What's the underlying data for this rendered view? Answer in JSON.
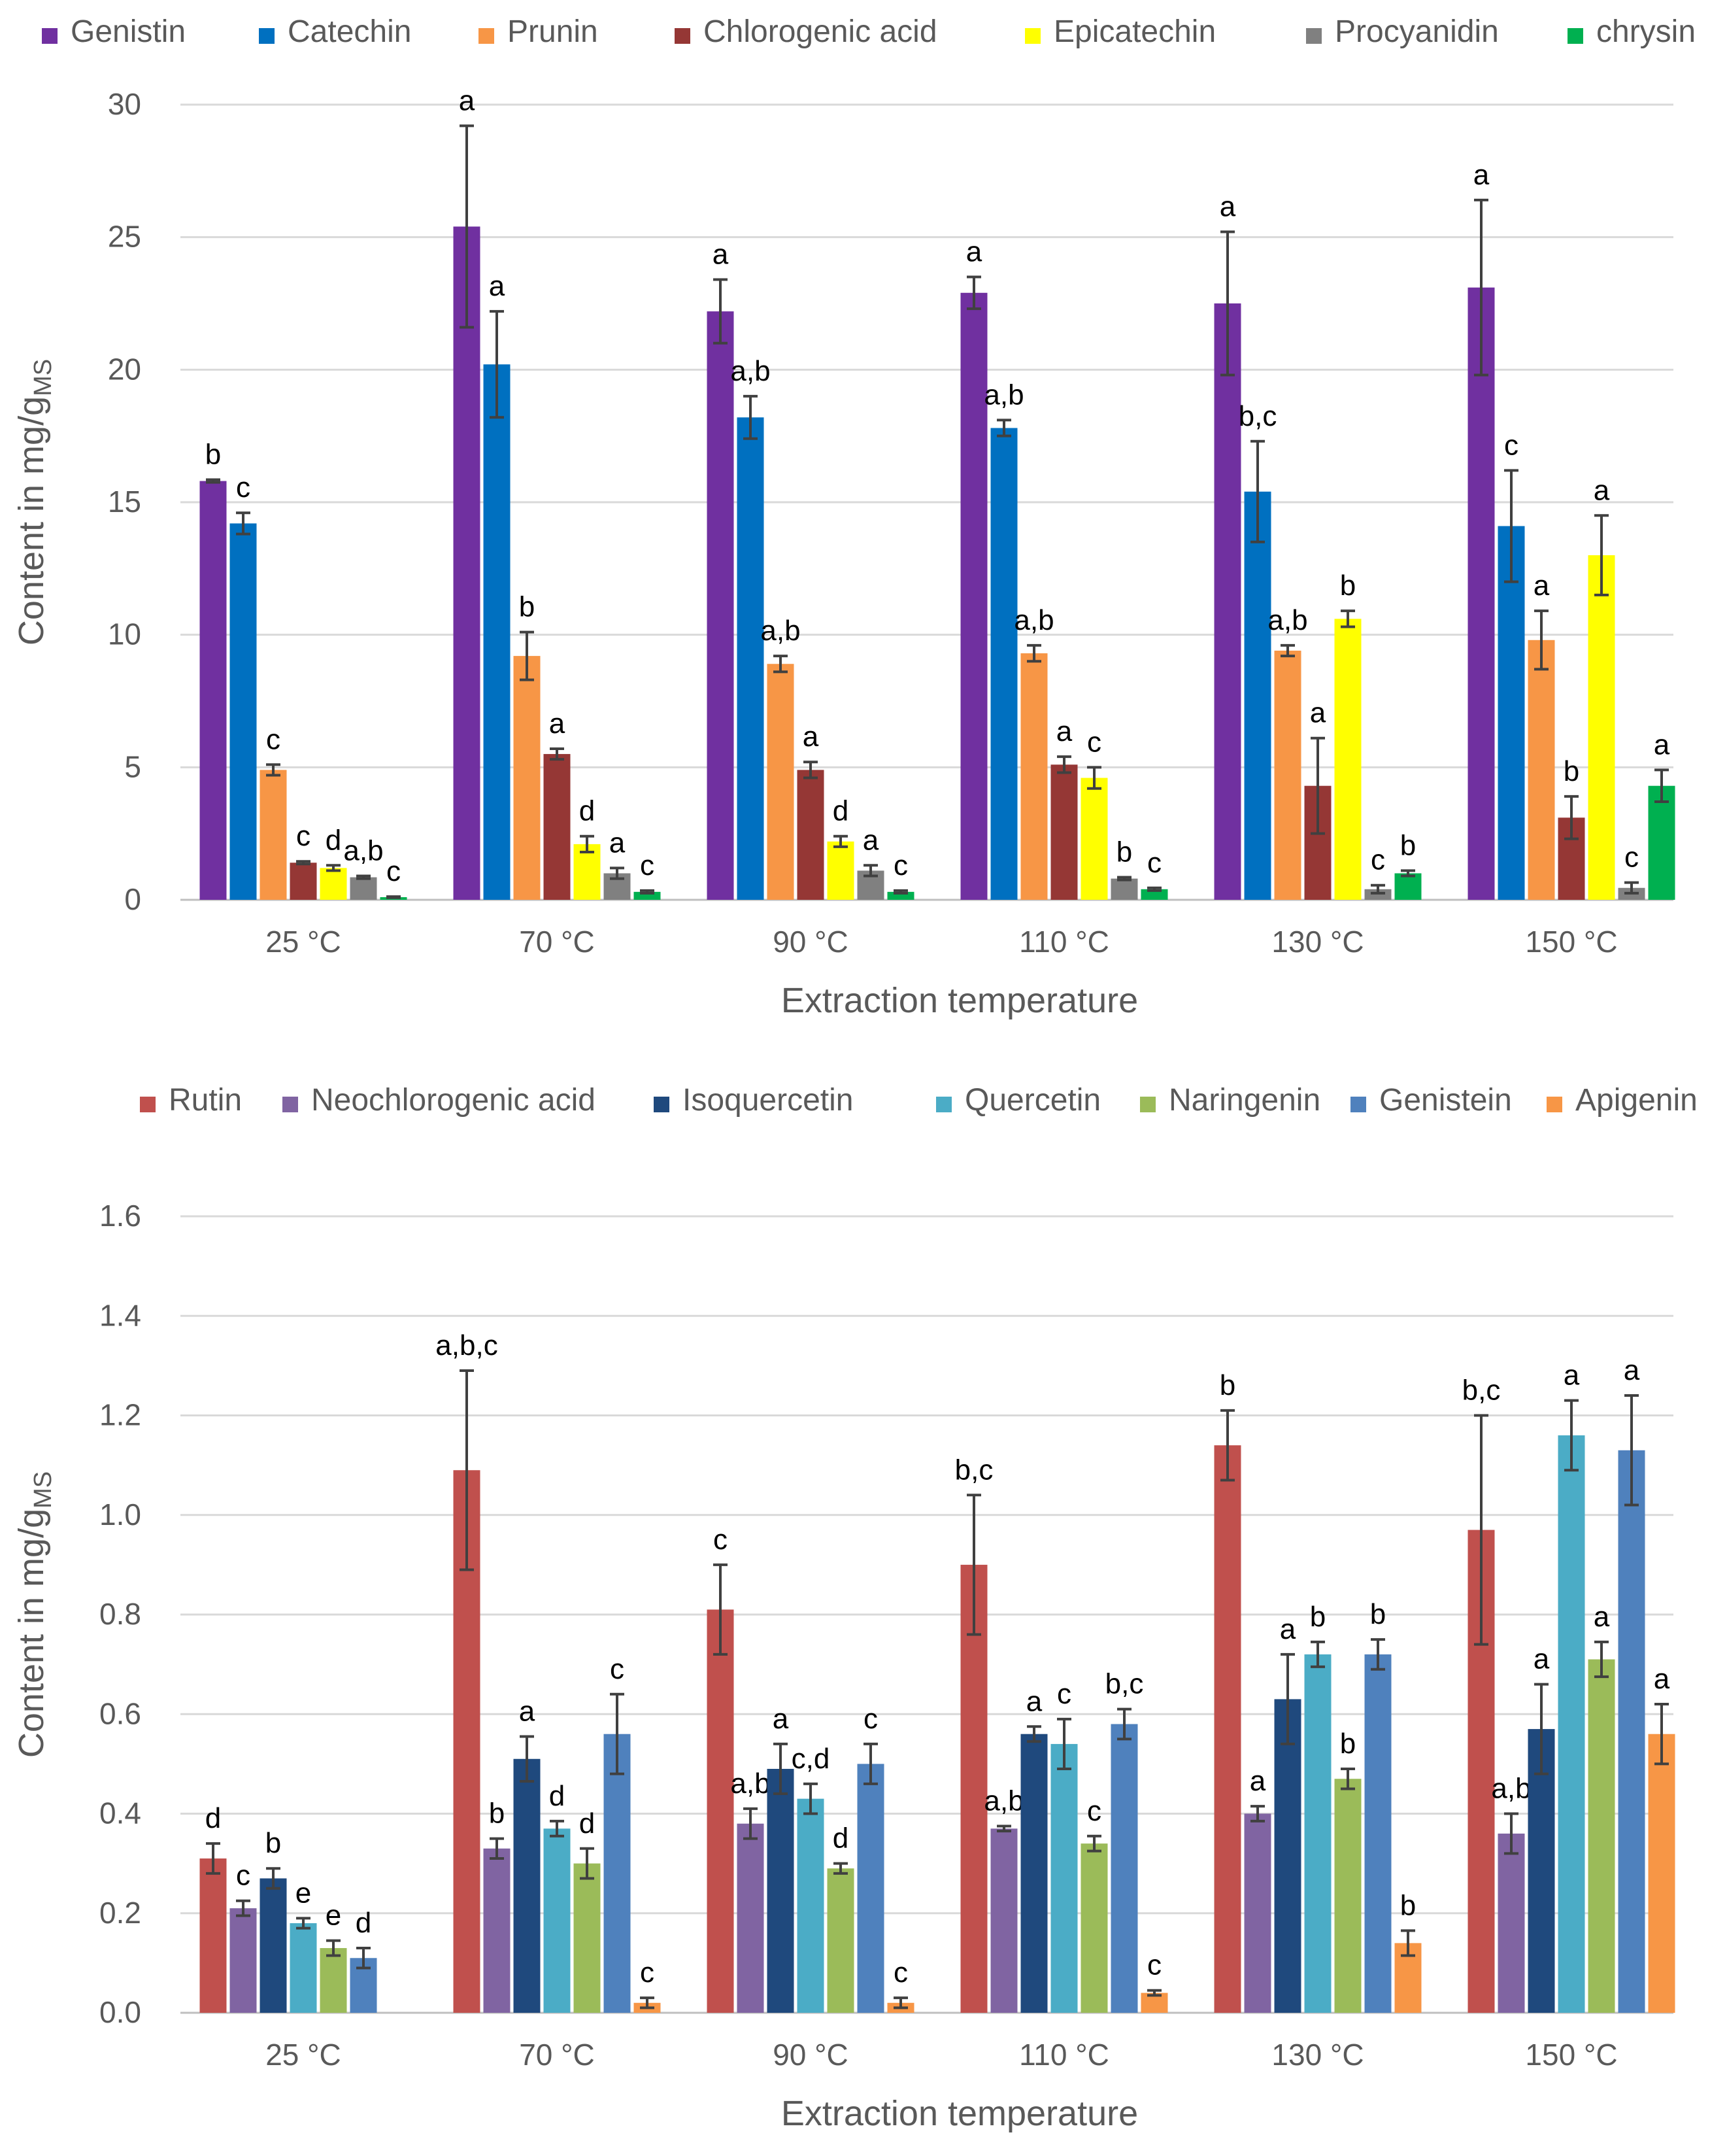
{
  "chart_data": [
    {
      "type": "bar",
      "title": "",
      "xlabel": "Extraction temperature",
      "ylabel": "Content in mg/g",
      "ylabel_sub": "MS",
      "ylim": [
        0,
        30
      ],
      "yticks": [
        "0",
        "5",
        "10",
        "15",
        "20",
        "25",
        "30"
      ],
      "grid": true,
      "legend_position": "top",
      "categories": [
        "25 °C",
        "70 °C",
        "90 °C",
        "110 °C",
        "130 °C",
        "150 °C"
      ],
      "series": [
        {
          "name": "Genistin",
          "color": "#7030A0",
          "values": [
            15.8,
            25.4,
            22.2,
            22.9,
            22.5,
            23.1
          ],
          "errors": [
            0.05,
            3.8,
            1.2,
            0.6,
            2.7,
            3.3
          ],
          "letters": [
            "b",
            "a",
            "a",
            "a",
            "a",
            "a"
          ]
        },
        {
          "name": "Catechin",
          "color": "#0070C0",
          "values": [
            14.2,
            20.2,
            18.2,
            17.8,
            15.4,
            14.1
          ],
          "errors": [
            0.4,
            2.0,
            0.8,
            0.3,
            1.9,
            2.1
          ],
          "letters": [
            "c",
            "a",
            "a,b",
            "a,b",
            "b,c",
            "c"
          ]
        },
        {
          "name": "Prunin",
          "color": "#F79646",
          "values": [
            4.9,
            9.2,
            8.9,
            9.3,
            9.4,
            9.8
          ],
          "errors": [
            0.2,
            0.9,
            0.3,
            0.3,
            0.2,
            1.1
          ],
          "letters": [
            "c",
            "b",
            "a,b",
            "a,b",
            "a,b",
            "a"
          ]
        },
        {
          "name": "Chlorogenic acid",
          "color": "#953735",
          "values": [
            1.4,
            5.5,
            4.9,
            5.1,
            4.3,
            3.1
          ],
          "errors": [
            0.05,
            0.2,
            0.3,
            0.3,
            1.8,
            0.8
          ],
          "letters": [
            "c",
            "a",
            "a",
            "a",
            "a",
            "b"
          ]
        },
        {
          "name": "Epicatechin",
          "color": "#FFFF00",
          "values": [
            1.2,
            2.1,
            2.2,
            4.6,
            10.6,
            13.0
          ],
          "errors": [
            0.1,
            0.3,
            0.2,
            0.4,
            0.3,
            1.5
          ],
          "letters": [
            "d",
            "d",
            "d",
            "c",
            "b",
            "a"
          ]
        },
        {
          "name": "Procyanidin",
          "color": "#808080",
          "values": [
            0.85,
            1.0,
            1.1,
            0.8,
            0.4,
            0.45
          ],
          "errors": [
            0.05,
            0.2,
            0.2,
            0.05,
            0.15,
            0.2
          ],
          "letters": [
            "a,b",
            "a",
            "a",
            "b",
            "c",
            "c"
          ]
        },
        {
          "name": "chrysin",
          "color": "#00B050",
          "values": [
            0.1,
            0.3,
            0.3,
            0.4,
            1.0,
            4.3
          ],
          "errors": [
            0.02,
            0.05,
            0.05,
            0.05,
            0.1,
            0.6
          ],
          "letters": [
            "c",
            "c",
            "c",
            "c",
            "b",
            "a"
          ]
        }
      ]
    },
    {
      "type": "bar",
      "title": "",
      "xlabel": "Extraction temperature",
      "ylabel": "Content in mg/g",
      "ylabel_sub": "MS",
      "ylim": [
        0,
        1.6
      ],
      "yticks": [
        "0.0",
        "0.2",
        "0.4",
        "0.6",
        "0.8",
        "1.0",
        "1.2",
        "1.4",
        "1.6"
      ],
      "grid": true,
      "legend_position": "top",
      "categories": [
        "25 °C",
        "70 °C",
        "90 °C",
        "110 °C",
        "130 °C",
        "150 °C"
      ],
      "series": [
        {
          "name": "Rutin",
          "color": "#C0504D",
          "values": [
            0.31,
            1.09,
            0.81,
            0.9,
            1.14,
            0.97
          ],
          "errors": [
            0.03,
            0.2,
            0.09,
            0.14,
            0.07,
            0.23
          ],
          "letters": [
            "d",
            "a,b,c",
            "c",
            "b,c",
            "b",
            "b,c"
          ]
        },
        {
          "name": "Neochlorogenic acid",
          "color": "#8064A2",
          "values": [
            0.21,
            0.33,
            0.38,
            0.37,
            0.4,
            0.36
          ],
          "errors": [
            0.015,
            0.02,
            0.03,
            0.005,
            0.015,
            0.04
          ],
          "letters": [
            "c",
            "b",
            "a,b",
            "a,b",
            "a",
            "a,b"
          ]
        },
        {
          "name": "Isoquercetin",
          "color": "#1F497D",
          "values": [
            0.27,
            0.51,
            0.49,
            0.56,
            0.63,
            0.57
          ],
          "errors": [
            0.02,
            0.045,
            0.05,
            0.015,
            0.09,
            0.09
          ],
          "letters": [
            "b",
            "a",
            "a",
            "a",
            "a",
            "a"
          ]
        },
        {
          "name": "Quercetin",
          "color": "#4BACC6",
          "values": [
            0.18,
            0.37,
            0.43,
            0.54,
            0.72,
            1.16
          ],
          "errors": [
            0.01,
            0.015,
            0.03,
            0.05,
            0.025,
            0.07
          ],
          "letters": [
            "e",
            "d",
            "c,d",
            "c",
            "b",
            "a"
          ]
        },
        {
          "name": "Naringenin",
          "color": "#9BBB59",
          "values": [
            0.13,
            0.3,
            0.29,
            0.34,
            0.47,
            0.71
          ],
          "errors": [
            0.015,
            0.03,
            0.01,
            0.015,
            0.02,
            0.035
          ],
          "letters": [
            "e",
            "d",
            "d",
            "c",
            "b",
            "a"
          ]
        },
        {
          "name": "Genistein",
          "color": "#4F81BD",
          "values": [
            0.11,
            0.56,
            0.5,
            0.58,
            0.72,
            1.13
          ],
          "errors": [
            0.02,
            0.08,
            0.04,
            0.03,
            0.03,
            0.11
          ],
          "letters": [
            "d",
            "c",
            "c",
            "b,c",
            "b",
            "a"
          ]
        },
        {
          "name": "Apigenin",
          "color": "#F79646",
          "values": [
            0.0,
            0.02,
            0.02,
            0.04,
            0.14,
            0.56
          ],
          "errors": [
            0.0,
            0.01,
            0.01,
            0.005,
            0.025,
            0.06
          ],
          "letters": [
            "",
            "c",
            "c",
            "c",
            "b",
            "a"
          ]
        }
      ]
    }
  ]
}
